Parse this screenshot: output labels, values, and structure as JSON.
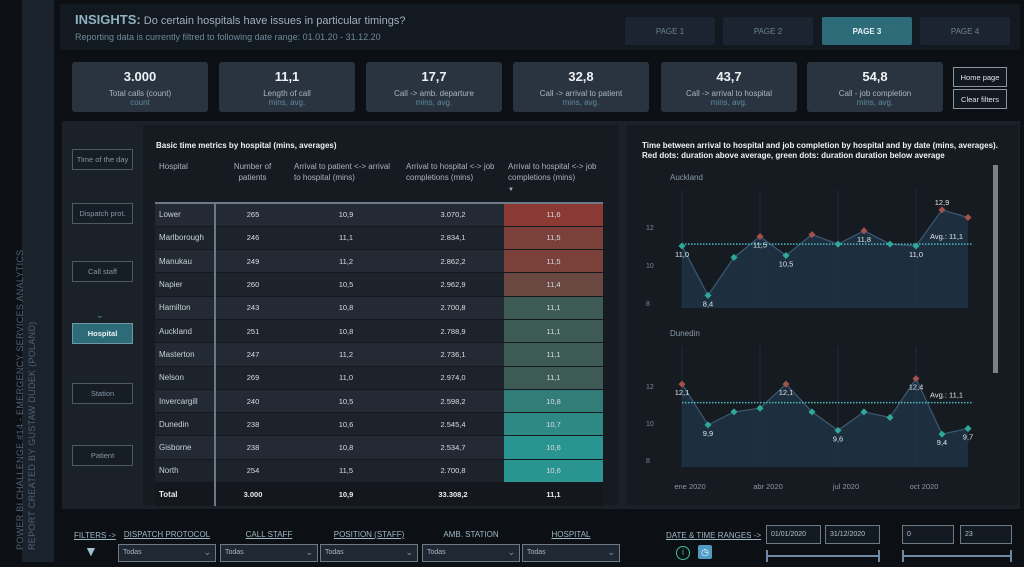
{
  "sidebar_text": [
    "POWER BI CHALLENGE #14 - EMERGENCY SERVICES ANALYTICS",
    "REPORT CREATED BY GUSTAW DUDEK (POLAND)"
  ],
  "header": {
    "insights_label": "INSIGHTS:",
    "question": "Do certain hospitals have issues in particular timings?",
    "subtitle": "Reporting data is currently filtred to following date range: 01.01.20 - 31.12.20"
  },
  "tabs": [
    {
      "label": "PAGE 1",
      "active": false
    },
    {
      "label": "PAGE 2",
      "active": false
    },
    {
      "label": "PAGE 3",
      "active": true
    },
    {
      "label": "PAGE 4",
      "active": false
    }
  ],
  "kpis": [
    {
      "value": "3.000",
      "label": "Total calls (count)",
      "unit": "count"
    },
    {
      "value": "11,1",
      "label": "Length of call",
      "unit": "mins, avg."
    },
    {
      "value": "17,7",
      "label": "Call -> amb. departure",
      "unit": "mins, avg."
    },
    {
      "value": "32,8",
      "label": "Call -> arrival to patient",
      "unit": "mins, avg."
    },
    {
      "value": "43,7",
      "label": "Call -> arrival to hospital",
      "unit": "mins, avg."
    },
    {
      "value": "54,8",
      "label": "Call - job completion",
      "unit": "mins, avg."
    }
  ],
  "buttons": {
    "home": "Home page",
    "clear": "Clear filters"
  },
  "nav": [
    {
      "label": "Time of the day"
    },
    {
      "label": "Dispatch prot."
    },
    {
      "label": "Call staff"
    },
    {
      "label": "Hospital",
      "active": true
    },
    {
      "label": "Station"
    },
    {
      "label": "Patient"
    }
  ],
  "table": {
    "title": "Basic time metrics by hospital (mins, averages)",
    "headers": [
      "Hospital",
      "Number of patients",
      "Arrival to patient <-> arrival to hospital (mins)",
      "Arrival to hospital <-> job completions (mins)",
      "Arrival to hospital <-> job completions (mins)"
    ],
    "rows": [
      [
        "Lower",
        "265",
        "10,9",
        "3.070,2",
        "11,6"
      ],
      [
        "Marlborough",
        "246",
        "11,1",
        "2.834,1",
        "11,5"
      ],
      [
        "Manukau",
        "249",
        "11,2",
        "2.862,2",
        "11,5"
      ],
      [
        "Napier",
        "260",
        "10,5",
        "2.962,9",
        "11,4"
      ],
      [
        "Hamilton",
        "243",
        "10,8",
        "2.700,8",
        "11,1"
      ],
      [
        "Auckland",
        "251",
        "10,8",
        "2.788,9",
        "11,1"
      ],
      [
        "Masterton",
        "247",
        "11,2",
        "2.736,1",
        "11,1"
      ],
      [
        "Nelson",
        "269",
        "11,0",
        "2.974,0",
        "11,1"
      ],
      [
        "Invercargill",
        "240",
        "10,5",
        "2.598,2",
        "10,8"
      ],
      [
        "Dunedin",
        "238",
        "10,6",
        "2.545,4",
        "10,7"
      ],
      [
        "Gisborne",
        "238",
        "10,8",
        "2.534,7",
        "10,6"
      ],
      [
        "North",
        "254",
        "11,5",
        "2.700,8",
        "10,6"
      ]
    ],
    "total": [
      "Total",
      "3.000",
      "10,9",
      "33.308,2",
      "11,1"
    ],
    "scale_colors": {
      "high": "#8a3a33",
      "mid": "#3d5a55",
      "low": "#2a9590"
    }
  },
  "chart_data": [
    {
      "type": "line",
      "title": "Time between arrival to hospital and job completion by hospital and by date (mins, averages).",
      "subtitle": "Red dots: duration above average, green dots: duration duration below average",
      "panel": "Auckland",
      "x": [
        "2020-01",
        "2020-02",
        "2020-03",
        "2020-04",
        "2020-05",
        "2020-06",
        "2020-07",
        "2020-08",
        "2020-09",
        "2020-10",
        "2020-11",
        "2020-12"
      ],
      "values": [
        11.0,
        8.4,
        10.4,
        11.5,
        10.5,
        11.6,
        11.1,
        11.8,
        11.1,
        11.0,
        12.9,
        12.5
      ],
      "data_labels": {
        "0": "11,0",
        "1": "8,4",
        "3": "11,5",
        "4": "10,5",
        "7": "11,8",
        "9": "11,0",
        "10": "12,9"
      },
      "average": 11.1,
      "average_label": "Avg.: 11,1",
      "yticks": [
        "8",
        "10",
        "12"
      ],
      "ylim": [
        7.6,
        13.6
      ],
      "above_color": "#a0524b",
      "below_color": "#2fa89a"
    },
    {
      "type": "line",
      "panel": "Dunedin",
      "x": [
        "2020-01",
        "2020-02",
        "2020-03",
        "2020-04",
        "2020-05",
        "2020-06",
        "2020-07",
        "2020-08",
        "2020-09",
        "2020-10",
        "2020-11",
        "2020-12"
      ],
      "values": [
        12.1,
        9.9,
        10.6,
        10.8,
        12.1,
        10.6,
        9.6,
        10.6,
        10.3,
        12.4,
        9.4,
        9.7
      ],
      "data_labels": {
        "0": "12,1",
        "1": "9,9",
        "4": "12,1",
        "6": "9,6",
        "9": "12,4",
        "10": "9,4",
        "11": "9,7"
      },
      "average": 11.1,
      "average_label": "Avg.: 11,1",
      "yticks": [
        "8",
        "10",
        "12"
      ],
      "ylim": [
        7.6,
        13.6
      ],
      "above_color": "#a0524b",
      "below_color": "#2fa89a",
      "xticks": [
        "ene 2020",
        "abr 2020",
        "jul 2020",
        "oct 2020"
      ]
    }
  ],
  "filters": {
    "label": "FILTERS ->",
    "items": [
      {
        "label": "DISPATCH PROTOCOL",
        "value": "Todas"
      },
      {
        "label": "CALL STAFF",
        "value": "Todas"
      },
      {
        "label": "POSITION (STAFF)",
        "value": "Todas"
      },
      {
        "label": "AMB. STATION",
        "value": "Todas"
      },
      {
        "label": "HOSPITAL",
        "value": "Todas"
      }
    ],
    "date_label": "DATE & TIME RANGES ->",
    "date_from": "01/01/2020",
    "date_to": "31/12/2020",
    "hour_from": "0",
    "hour_to": "23"
  }
}
